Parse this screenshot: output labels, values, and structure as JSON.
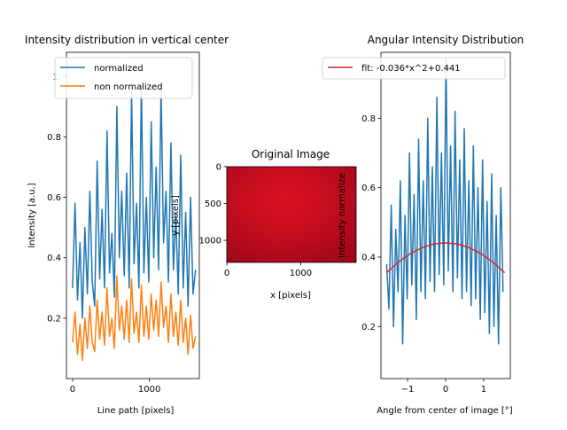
{
  "chart_data": [
    {
      "type": "line",
      "title": "Intensity distribution in vertical center",
      "xlabel": "Line path [pixels]",
      "ylabel": "Intensity [a.u.]",
      "xlim": [
        -80,
        1650
      ],
      "ylim": [
        0.0,
        1.08
      ],
      "xticks": [
        0,
        1000
      ],
      "yticks": [
        0.2,
        0.4,
        0.6,
        0.8,
        1.0
      ],
      "ytick_labels": [
        "0.2",
        "0.4",
        "0.6",
        "0.8",
        "1."
      ],
      "legend": {
        "placement": "upper-left",
        "entries": [
          "normalized",
          "non normalized"
        ]
      },
      "series": [
        {
          "name": "normalized",
          "color": "#1f77b4",
          "x": [
            0,
            32,
            64,
            96,
            128,
            160,
            192,
            224,
            256,
            288,
            320,
            352,
            384,
            416,
            448,
            480,
            512,
            544,
            576,
            608,
            640,
            672,
            704,
            736,
            768,
            800,
            832,
            864,
            896,
            928,
            960,
            992,
            1024,
            1056,
            1088,
            1120,
            1152,
            1184,
            1216,
            1248,
            1280,
            1312,
            1344,
            1376,
            1408,
            1440,
            1472,
            1504,
            1536,
            1568,
            1600
          ],
          "y": [
            0.3,
            0.58,
            0.26,
            0.45,
            0.2,
            0.5,
            0.28,
            0.62,
            0.32,
            0.24,
            0.72,
            0.33,
            0.56,
            0.3,
            0.82,
            0.35,
            0.48,
            0.27,
            0.9,
            0.4,
            0.62,
            0.34,
            0.68,
            0.3,
            0.95,
            0.38,
            0.58,
            0.3,
            0.98,
            0.35,
            0.6,
            0.32,
            0.85,
            0.4,
            0.7,
            0.36,
            0.96,
            0.45,
            0.62,
            0.32,
            0.78,
            0.36,
            0.54,
            0.28,
            0.74,
            0.3,
            0.55,
            0.24,
            0.6,
            0.28,
            0.36
          ]
        },
        {
          "name": "non normalized",
          "color": "#ff7f0e",
          "x": [
            0,
            32,
            64,
            96,
            128,
            160,
            192,
            224,
            256,
            288,
            320,
            352,
            384,
            416,
            448,
            480,
            512,
            544,
            576,
            608,
            640,
            672,
            704,
            736,
            768,
            800,
            832,
            864,
            896,
            928,
            960,
            992,
            1024,
            1056,
            1088,
            1120,
            1152,
            1184,
            1216,
            1248,
            1280,
            1312,
            1344,
            1376,
            1408,
            1440,
            1472,
            1504,
            1536,
            1568,
            1600
          ],
          "y": [
            0.12,
            0.22,
            0.08,
            0.18,
            0.06,
            0.2,
            0.1,
            0.24,
            0.12,
            0.09,
            0.26,
            0.13,
            0.22,
            0.11,
            0.3,
            0.14,
            0.2,
            0.1,
            0.34,
            0.16,
            0.24,
            0.13,
            0.26,
            0.12,
            0.33,
            0.15,
            0.22,
            0.12,
            0.31,
            0.14,
            0.24,
            0.13,
            0.28,
            0.16,
            0.26,
            0.14,
            0.32,
            0.17,
            0.24,
            0.12,
            0.28,
            0.14,
            0.22,
            0.11,
            0.26,
            0.12,
            0.2,
            0.08,
            0.21,
            0.1,
            0.14
          ]
        }
      ]
    },
    {
      "type": "heatmap",
      "title": "Original Image",
      "xlabel": "x [pixels]",
      "ylabel": "y [pixels]",
      "xlim": [
        0,
        1750
      ],
      "ylim": [
        0,
        1300
      ],
      "y_inverted": true,
      "xticks": [
        0,
        1000
      ],
      "yticks": [
        0,
        500,
        1000
      ],
      "colors": {
        "base": "#e0101c",
        "bright": "#ff2a2a",
        "dark": "#8c0a12"
      }
    },
    {
      "type": "line",
      "title": "Angular Intensity Distribution",
      "xlabel": "Angle from center of image [°]",
      "ylabel": "Intensity normalize",
      "xlim": [
        -1.7,
        1.7
      ],
      "ylim": [
        0.05,
        0.99
      ],
      "xticks": [
        -1,
        0,
        1
      ],
      "yticks": [
        0.2,
        0.4,
        0.6,
        0.8
      ],
      "legend": {
        "placement": "upper-right",
        "entries": [
          "fit: -0.036*x^2+0.441"
        ]
      },
      "series": [
        {
          "color": "#1f77b4",
          "x": [
            -1.55,
            -1.49,
            -1.43,
            -1.37,
            -1.31,
            -1.25,
            -1.19,
            -1.13,
            -1.07,
            -1.01,
            -0.95,
            -0.89,
            -0.83,
            -0.77,
            -0.71,
            -0.65,
            -0.59,
            -0.53,
            -0.47,
            -0.41,
            -0.35,
            -0.29,
            -0.23,
            -0.17,
            -0.11,
            -0.05,
            0.01,
            0.07,
            0.13,
            0.19,
            0.25,
            0.31,
            0.37,
            0.43,
            0.49,
            0.55,
            0.61,
            0.67,
            0.73,
            0.79,
            0.85,
            0.91,
            0.97,
            1.03,
            1.09,
            1.15,
            1.21,
            1.27,
            1.33,
            1.39,
            1.45,
            1.51
          ],
          "y": [
            0.38,
            0.25,
            0.55,
            0.2,
            0.48,
            0.3,
            0.62,
            0.15,
            0.52,
            0.28,
            0.7,
            0.32,
            0.58,
            0.22,
            0.74,
            0.3,
            0.62,
            0.28,
            0.8,
            0.33,
            0.66,
            0.3,
            0.86,
            0.35,
            0.7,
            0.32,
            0.97,
            0.36,
            0.72,
            0.3,
            0.82,
            0.34,
            0.68,
            0.28,
            0.77,
            0.3,
            0.62,
            0.26,
            0.72,
            0.28,
            0.6,
            0.22,
            0.68,
            0.24,
            0.56,
            0.18,
            0.64,
            0.2,
            0.52,
            0.15,
            0.6,
            0.3
          ]
        },
        {
          "name": "fit: -0.036*x^2+0.441",
          "color": "#d62728",
          "x": [
            -1.55,
            -1.24,
            -0.93,
            -0.62,
            -0.31,
            0.0,
            0.31,
            0.62,
            0.93,
            1.24,
            1.55
          ],
          "y": [
            0.355,
            0.386,
            0.41,
            0.427,
            0.438,
            0.441,
            0.438,
            0.427,
            0.41,
            0.386,
            0.355
          ]
        }
      ]
    }
  ]
}
